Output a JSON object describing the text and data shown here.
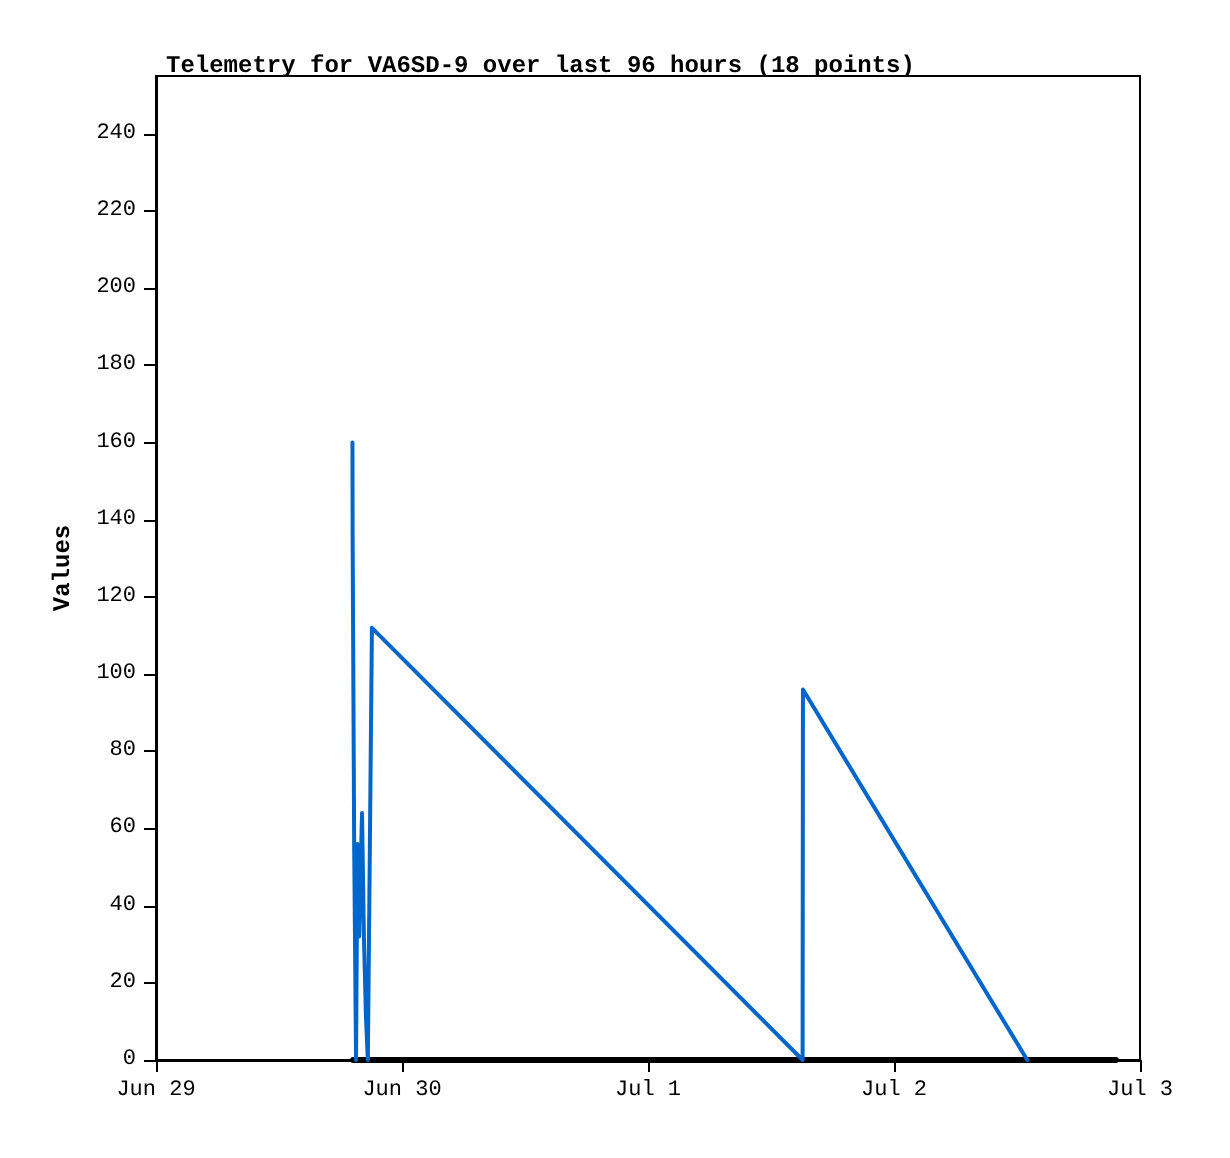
{
  "chart_data": {
    "type": "line",
    "title": "Telemetry for VA6SD-9 over last 96 hours (18 points)",
    "ylabel": "Values",
    "series": [
      {
        "color": "#0066cc",
        "x": [
          "--06-29T19:10",
          "--06-29T19:11",
          "--06-29T19:20",
          "--06-29T19:31",
          "--06-29T19:39",
          "--06-29T19:49",
          "--06-29T20:06",
          "--06-29T20:17",
          "--06-29T20:29",
          "--06-29T20:40",
          "--06-29T20:52",
          "--06-29T21:04",
          "--07-01T15:05",
          "--07-01T15:07",
          "--07-02T13:00"
        ],
        "values": [
          160,
          136,
          56,
          0,
          56,
          32,
          64,
          32,
          11,
          0,
          56,
          112,
          0,
          96,
          0
        ]
      },
      {
        "color": "#000000",
        "x": [
          "--06-29T19:14",
          "--07-02T21:39"
        ],
        "values": [
          0,
          0
        ]
      }
    ],
    "xlim": [
      "--06-29",
      "--07-03"
    ],
    "xticks": [
      {
        "value": "--06-29",
        "label": "Jun 29"
      },
      {
        "value": "--06-30",
        "label": "Jun 30"
      },
      {
        "value": "--07-01",
        "label": "Jul 1"
      },
      {
        "value": "--07-02",
        "label": "Jul 2"
      },
      {
        "value": "--07-03",
        "label": "Jul 3"
      }
    ],
    "ylim": [
      0,
      255
    ],
    "yticks": [
      0,
      20,
      40,
      60,
      80,
      100,
      120,
      140,
      160,
      180,
      200,
      220,
      240
    ],
    "grid": false,
    "marker": "none",
    "line_style": "solid"
  }
}
